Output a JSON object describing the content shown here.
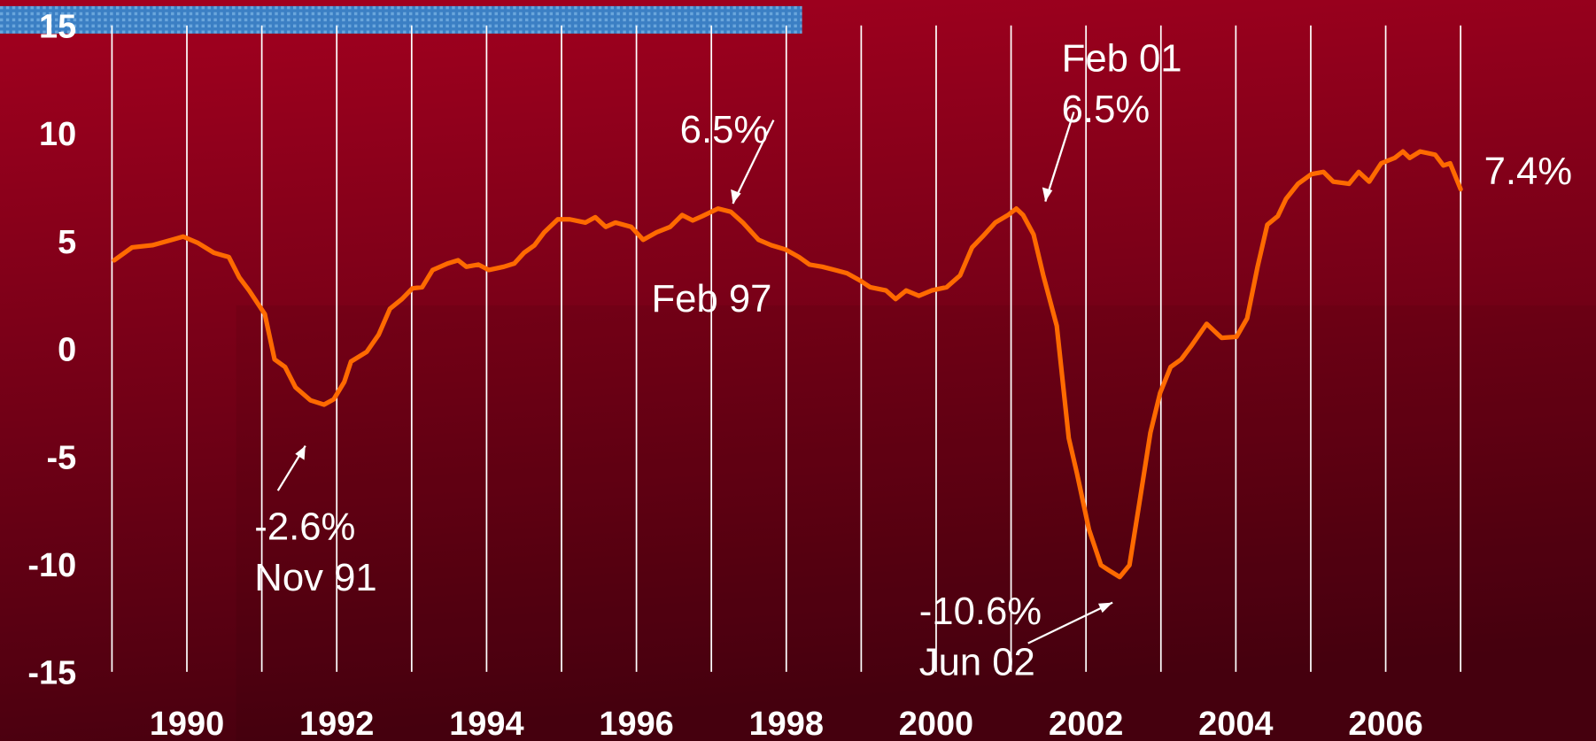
{
  "chart_data": {
    "type": "line",
    "x": [
      1989.03,
      1989.27,
      1989.54,
      1989.8,
      1989.95,
      1990.15,
      1990.36,
      1990.56,
      1990.7,
      1990.83,
      1991.04,
      1991.17,
      1991.31,
      1991.45,
      1991.65,
      1991.83,
      1991.96,
      1992.1,
      1992.19,
      1992.4,
      1992.56,
      1992.71,
      1992.87,
      1993.01,
      1993.14,
      1993.28,
      1993.48,
      1993.62,
      1993.73,
      1993.89,
      1994.03,
      1994.23,
      1994.37,
      1994.5,
      1994.64,
      1994.77,
      1994.95,
      1995.11,
      1995.32,
      1995.45,
      1995.59,
      1995.72,
      1995.93,
      1996.09,
      1996.27,
      1996.45,
      1996.61,
      1996.75,
      1996.88,
      1997.09,
      1997.26,
      1997.42,
      1997.63,
      1997.8,
      1997.99,
      1998.17,
      1998.31,
      1998.48,
      1998.65,
      1998.81,
      1998.99,
      1999.12,
      1999.33,
      1999.46,
      1999.6,
      1999.77,
      1999.94,
      2000.14,
      2000.32,
      2000.48,
      2000.62,
      2000.79,
      2000.96,
      2001.07,
      2001.16,
      2001.3,
      2001.43,
      2001.61,
      2001.77,
      2001.88,
      2002.04,
      2002.2,
      2002.31,
      2002.45,
      2002.58,
      2002.72,
      2002.86,
      2002.99,
      2003.13,
      2003.27,
      2003.4,
      2003.61,
      2003.81,
      2004.01,
      2004.15,
      2004.29,
      2004.42,
      2004.56,
      2004.67,
      2004.83,
      2005.01,
      2005.17,
      2005.3,
      2005.51,
      2005.64,
      2005.78,
      2005.94,
      2006.12,
      2006.23,
      2006.32,
      2006.46,
      2006.66,
      2006.77,
      2006.86,
      2007.0
    ],
    "series": [
      {
        "color": "#ff6a00",
        "values": [
          4.1,
          4.7,
          4.8,
          5.05,
          5.2,
          4.9,
          4.45,
          4.25,
          3.3,
          2.7,
          1.6,
          -0.5,
          -0.85,
          -1.8,
          -2.4,
          -2.6,
          -2.35,
          -1.55,
          -0.6,
          -0.15,
          0.65,
          1.85,
          2.3,
          2.8,
          2.85,
          3.65,
          3.95,
          4.1,
          3.8,
          3.9,
          3.65,
          3.8,
          3.95,
          4.45,
          4.8,
          5.4,
          6.0,
          6.0,
          5.85,
          6.1,
          5.65,
          5.85,
          5.65,
          5.05,
          5.4,
          5.65,
          6.2,
          5.95,
          6.15,
          6.5,
          6.35,
          5.85,
          5.05,
          4.8,
          4.6,
          4.25,
          3.9,
          3.8,
          3.65,
          3.5,
          3.15,
          2.85,
          2.7,
          2.3,
          2.7,
          2.45,
          2.7,
          2.85,
          3.4,
          4.7,
          5.2,
          5.85,
          6.2,
          6.5,
          6.2,
          5.3,
          3.4,
          1.05,
          -4.15,
          -5.8,
          -8.4,
          -10.05,
          -10.3,
          -10.6,
          -10.05,
          -7.0,
          -3.9,
          -2.05,
          -0.85,
          -0.5,
          0.1,
          1.15,
          0.5,
          0.55,
          1.4,
          3.8,
          5.75,
          6.15,
          6.95,
          7.65,
          8.1,
          8.2,
          7.75,
          7.65,
          8.2,
          7.75,
          8.6,
          8.85,
          9.15,
          8.85,
          9.15,
          9.0,
          8.5,
          8.6,
          7.4
        ]
      }
    ],
    "xlim": [
      1989,
      2007
    ],
    "xticks": [
      1990,
      1992,
      1994,
      1996,
      1998,
      2000,
      2002,
      2004,
      2006
    ],
    "xminor_ticks": [
      1989,
      1991,
      1993,
      1995,
      1997,
      1999,
      2001,
      2003,
      2005,
      2007
    ],
    "ylim": [
      -15,
      15
    ],
    "yticks": [
      -15,
      -10,
      -5,
      0,
      5,
      10,
      15
    ],
    "grid": true,
    "annotations": [
      "6.5%",
      "Feb 97",
      "Feb 01",
      "6.5%",
      "-2.6%",
      "Nov 91",
      "-10.6%",
      "Jun 02",
      "7.4%"
    ]
  }
}
